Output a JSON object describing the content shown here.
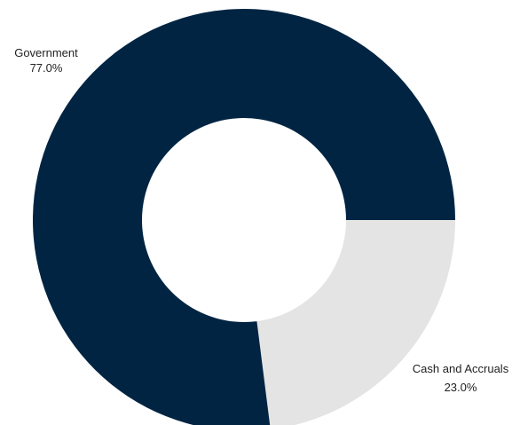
{
  "chart_data": {
    "type": "pie",
    "donut": true,
    "title": "",
    "slices": [
      {
        "label": "Cash and Accruals",
        "value": 23.0,
        "value_label": "23.0%",
        "color": "#e4e4e4"
      },
      {
        "label": "Government",
        "value": 77.0,
        "value_label": "77.0%",
        "color": "#002442"
      }
    ]
  }
}
